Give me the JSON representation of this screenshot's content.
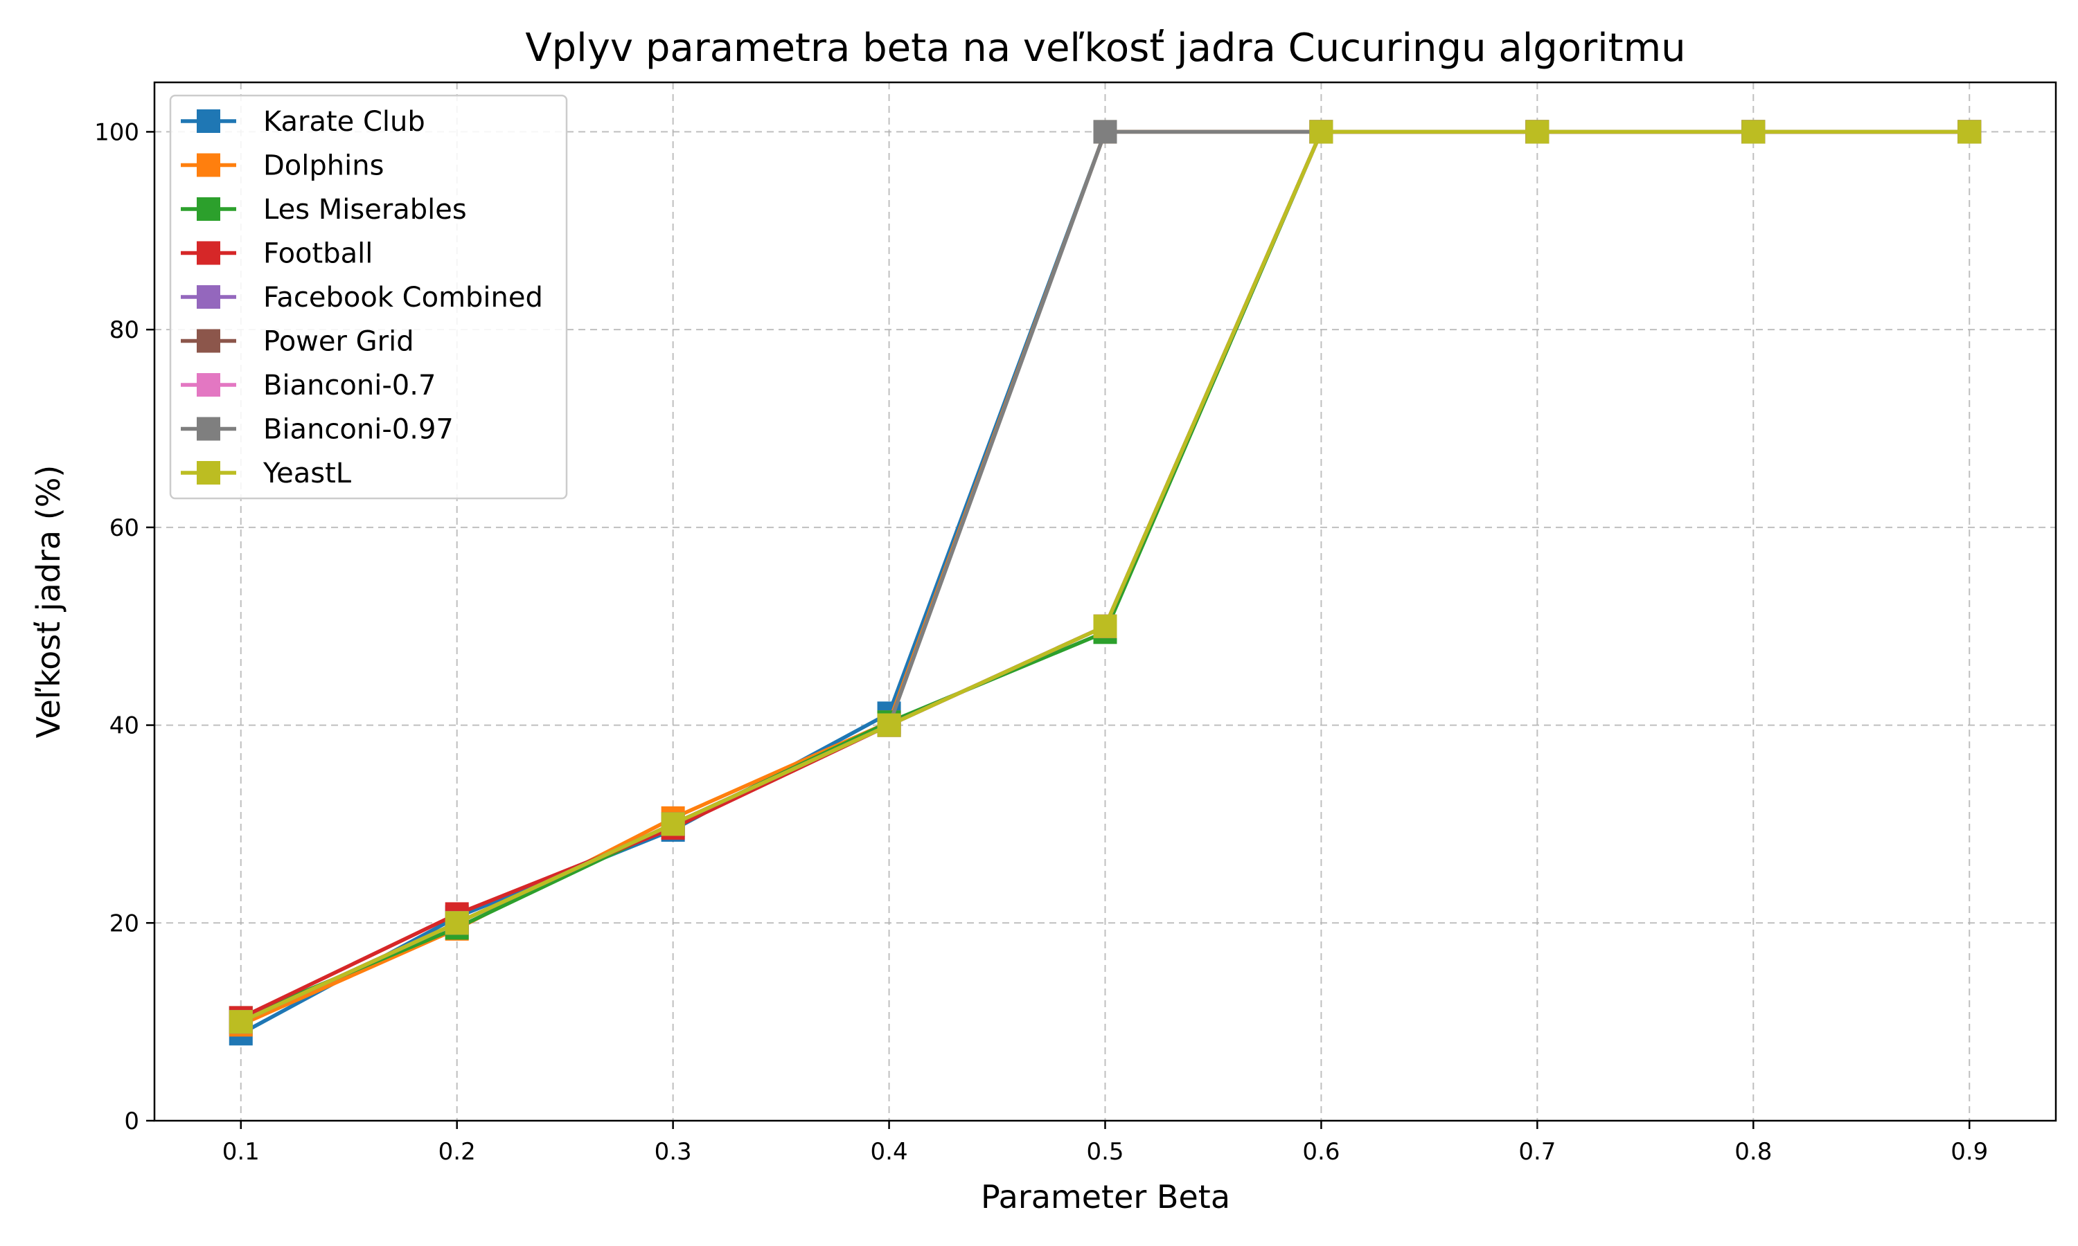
{
  "chart_data": {
    "type": "line",
    "title": "Vplyv parametra beta na veľkosť jadra Cucuringu algoritmu",
    "xlabel": "Parameter Beta",
    "ylabel": "Veľkosť jadra (%)",
    "x": [
      0.1,
      0.2,
      0.3,
      0.4,
      0.5,
      0.6,
      0.7,
      0.8,
      0.9
    ],
    "x_tick_labels": [
      "0.1",
      "0.2",
      "0.3",
      "0.4",
      "0.5",
      "0.6",
      "0.7",
      "0.8",
      "0.9"
    ],
    "xlim": [
      0.06,
      0.94
    ],
    "ylim": [
      0,
      105
    ],
    "y_ticks": [
      0,
      20,
      40,
      60,
      80,
      100
    ],
    "y_tick_labels": [
      "0",
      "20",
      "40",
      "60",
      "80",
      "100"
    ],
    "grid": true,
    "legend_position": "top-left",
    "marker": "square",
    "series": [
      {
        "name": "Karate Club",
        "color": "#1f77b4",
        "values": [
          8.8,
          20.6,
          29.4,
          41.2,
          100,
          100,
          100,
          100,
          100
        ]
      },
      {
        "name": "Dolphins",
        "color": "#ff7f0e",
        "values": [
          9.7,
          19.4,
          30.6,
          40.3,
          100,
          100,
          100,
          100,
          100
        ]
      },
      {
        "name": "Les Miserables",
        "color": "#2ca02c",
        "values": [
          10.4,
          19.5,
          29.9,
          40.3,
          49.4,
          100,
          100,
          100,
          100
        ]
      },
      {
        "name": "Football",
        "color": "#d62728",
        "values": [
          10.4,
          20.9,
          29.6,
          40.0,
          50.0,
          100,
          100,
          100,
          100
        ]
      },
      {
        "name": "Facebook Combined",
        "color": "#9467bd",
        "values": [
          10.0,
          20.0,
          30.0,
          40.0,
          50.0,
          100,
          100,
          100,
          100
        ]
      },
      {
        "name": "Power Grid",
        "color": "#8c564b",
        "values": [
          10.0,
          20.0,
          30.0,
          40.0,
          50.0,
          100,
          100,
          100,
          100
        ]
      },
      {
        "name": "Bianconi-0.7",
        "color": "#e377c2",
        "values": [
          10.0,
          20.0,
          30.0,
          40.0,
          50.0,
          100,
          100,
          100,
          100
        ]
      },
      {
        "name": "Bianconi-0.97",
        "color": "#7f7f7f",
        "values": [
          10.0,
          20.0,
          30.0,
          40.0,
          100,
          100,
          100,
          100,
          100
        ]
      },
      {
        "name": "YeastL",
        "color": "#bcbd22",
        "values": [
          10.0,
          20.0,
          30.0,
          40.0,
          50.0,
          100,
          100,
          100,
          100
        ]
      }
    ]
  }
}
